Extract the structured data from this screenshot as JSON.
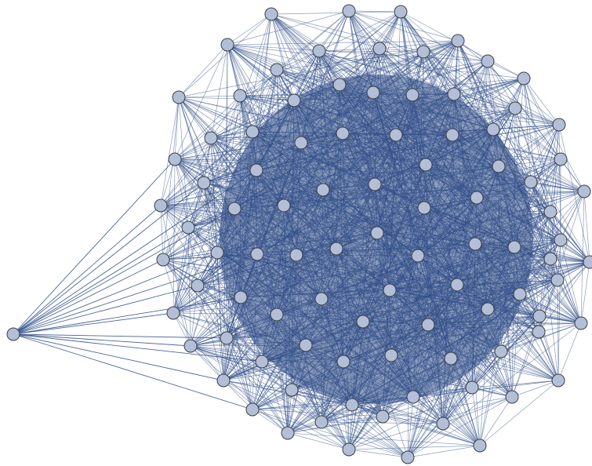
{
  "graph": {
    "edge_color": "#2f4d86",
    "node_fill": "#b3bfd6",
    "node_stroke": "#3b3f49",
    "background": "#ffffff",
    "outlier_node_count": 1,
    "outer_ring_node_count": 36,
    "inner_node_count": 58
  }
}
